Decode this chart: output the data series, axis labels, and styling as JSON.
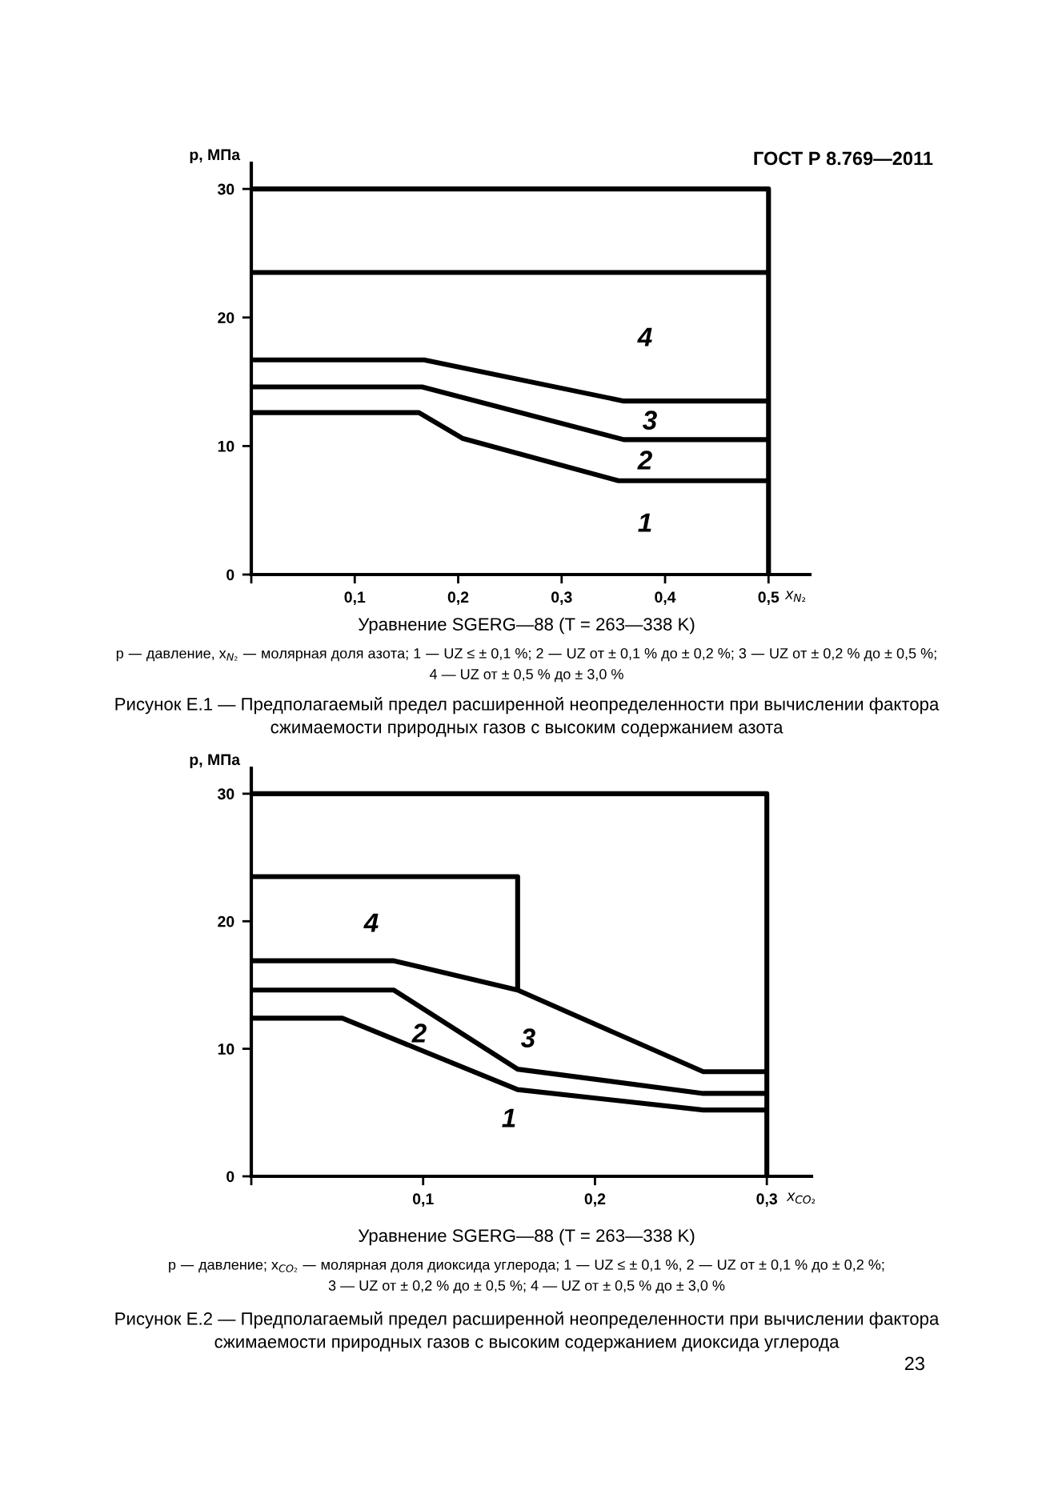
{
  "chart_data": [
    {
      "type": "line",
      "title": "Рисунок Е.1 — Предполагаемый предел расширенной неопределенности при вычислении фактора\nсжимаемости природных газов с высоким содержанием азота",
      "xlabel": "x$_{N₂}$",
      "ylabel": "p, МПа",
      "xlim": [
        0,
        0.54
      ],
      "ylim": [
        0,
        32
      ],
      "xticks": [
        {
          "value": 0,
          "label": null
        },
        {
          "value": 0.1,
          "label": "0,1"
        },
        {
          "value": 0.2,
          "label": "0,2"
        },
        {
          "value": 0.3,
          "label": "0,3"
        },
        {
          "value": 0.4,
          "label": "0,4"
        },
        {
          "value": 0.5,
          "label": "0,5"
        }
      ],
      "yticks": [
        0,
        10,
        20,
        30
      ],
      "grid": false,
      "marker": "none",
      "line_style": "solid",
      "series": [
        {
          "color": "#000000",
          "x": [
            0,
            0.5,
            0.5
          ],
          "values": [
            30,
            30,
            0
          ]
        },
        {
          "color": "#000000",
          "x": [
            0,
            0.5
          ],
          "values": [
            23.5,
            23.5
          ]
        },
        {
          "color": "#000000",
          "x": [
            0,
            0.167,
            0.36,
            0.5
          ],
          "values": [
            16.7,
            16.7,
            13.5,
            13.5
          ]
        },
        {
          "color": "#000000",
          "x": [
            0,
            0.165,
            0.36,
            0.5
          ],
          "values": [
            14.6,
            14.6,
            10.5,
            10.5
          ]
        },
        {
          "color": "#000000",
          "x": [
            0,
            0.162,
            0.204,
            0.355,
            0.5
          ],
          "values": [
            12.6,
            12.6,
            10.6,
            7.3,
            7.3
          ]
        }
      ],
      "annotations": [
        "ГОСТ Р 8.769—2011",
        "Уравнение SGERG—88 (T = 263—338 K)",
        "p — давление, x$_{N₂}$ — молярная доля азота; 1 — UZ ≤ ± 0,1 %; 2 — UZ от ± 0,1 % до ± 0,2 %; 3 — UZ от ± 0,2 % до ± 0,5 %;",
        "4 — UZ от ± 0,5 % до ± 3,0 %",
        "4",
        "3",
        "2",
        "1"
      ]
    },
    {
      "type": "line",
      "title": "Рисунок Е.2 — Предполагаемый предел расширенной неопределенности при вычислении фактора\nсжимаемости природных газов с высоким содержанием диоксида углерода",
      "xlabel": "x$_{CO₂}$",
      "ylabel": "p, МПа",
      "xlim": [
        0,
        0.326
      ],
      "ylim": [
        0,
        32
      ],
      "xticks": [
        {
          "value": 0,
          "label": null
        },
        {
          "value": 0.1,
          "label": "0,1"
        },
        {
          "value": 0.2,
          "label": "0,2"
        },
        {
          "value": 0.3,
          "label": "0,3"
        }
      ],
      "yticks": [
        0,
        10,
        20,
        30
      ],
      "grid": false,
      "marker": "none",
      "line_style": "solid",
      "series": [
        {
          "color": "#000000",
          "x": [
            0,
            0.3,
            0.3
          ],
          "values": [
            30,
            30,
            0
          ]
        },
        {
          "color": "#000000",
          "x": [
            0,
            0.155,
            0.155
          ],
          "values": [
            23.5,
            23.5,
            14.6
          ]
        },
        {
          "color": "#000000",
          "x": [
            0,
            0.083,
            0.155,
            0.263,
            0.3
          ],
          "values": [
            16.9,
            16.9,
            14.6,
            8.2,
            8.2
          ]
        },
        {
          "color": "#000000",
          "x": [
            0,
            0.083,
            0.155,
            0.263,
            0.3
          ],
          "values": [
            14.6,
            14.6,
            8.4,
            6.5,
            6.5
          ]
        },
        {
          "color": "#000000",
          "x": [
            0,
            0.053,
            0.155,
            0.263,
            0.3
          ],
          "values": [
            12.4,
            12.4,
            6.8,
            5.2,
            5.2
          ]
        }
      ],
      "annotations": [
        "Уравнение SGERG—88 (T = 263—338 K)",
        "p — давление; x$_{CO₂}$ — молярная доля диоксида углерода; 1 — UZ ≤ ± 0,1 %, 2 — UZ от ± 0,1 % до ± 0,2 %;",
        "3 — UZ от ± 0,2 % до ± 0,5 %; 4 — UZ от ± 0,5 % до ± 3,0 %",
        "23",
        "4",
        "2",
        "3",
        "1"
      ]
    }
  ]
}
